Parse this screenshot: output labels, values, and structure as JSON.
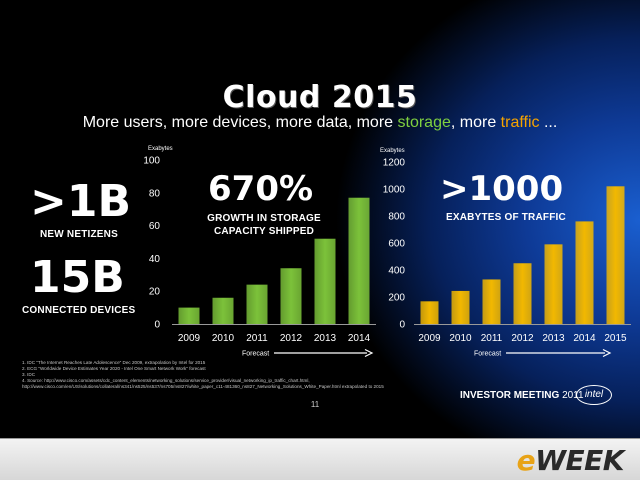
{
  "title": "Cloud 2015",
  "subtitle": {
    "part1": "More users, more devices, more data, more ",
    "storage": "storage",
    "part2": ", more ",
    "traffic": "traffic",
    "part3": " ..."
  },
  "stats": {
    "netizens_value": ">1B",
    "netizens_label": "NEW NETIZENS",
    "devices_value": "15B",
    "devices_label": "CONNECTED DEVICES",
    "storage_value": "670%",
    "storage_label_line1": "GROWTH IN STORAGE",
    "storage_label_line2": "CAPACITY SHIPPED",
    "traffic_value": ">1000",
    "traffic_label": "EXABYTES OF TRAFFIC"
  },
  "chart_data": [
    {
      "type": "bar",
      "unit_label": "Exabytes",
      "categories": [
        "2009",
        "2010",
        "2011",
        "2012",
        "2013",
        "2014"
      ],
      "values": [
        10,
        16,
        24,
        34,
        52,
        77
      ],
      "ylim": [
        0,
        100
      ],
      "yticks": [
        0,
        20,
        40,
        60,
        80,
        100
      ],
      "forecast_label": "Forecast",
      "color": "#7cc23a"
    },
    {
      "type": "bar",
      "unit_label": "Exabytes",
      "categories": [
        "2009",
        "2010",
        "2011",
        "2012",
        "2013",
        "2014",
        "2015"
      ],
      "values": [
        168,
        245,
        330,
        450,
        590,
        760,
        1020
      ],
      "ylim": [
        0,
        1200
      ],
      "yticks": [
        0,
        200,
        400,
        600,
        800,
        1000,
        1200
      ],
      "forecast_label": "Forecast",
      "color": "#f2b800"
    }
  ],
  "footnotes": [
    "1.   IDC \"The Internet Reaches Late Adolescence\" Dec 2009, extrapolation by Intel for 2015",
    "2.   ECG \"Worldwide Device Estimates Year 2020 - Intel One Smart Network Work\" forecast",
    "3.   IDC",
    "4.   Source: http://www.cisco.com/assets/cdc_content_elements/networking_solutions/service_provider/visual_networking_ip_traffic_chart.html,",
    "      http://www.cisco.com/en/US/solutions/collateral/ns341/ns525/ns537/ns705/ns827/white_paper_c11-481360_ns827_Networking_Solutions_White_Paper.html   extrapolated to 2015"
  ],
  "page_number": "11",
  "investor_meeting": {
    "label": "INVESTOR MEETING",
    "year": "2011"
  },
  "intel_logo": "intel",
  "eweek_logo": {
    "e": "e",
    "rest": "WEEK"
  }
}
